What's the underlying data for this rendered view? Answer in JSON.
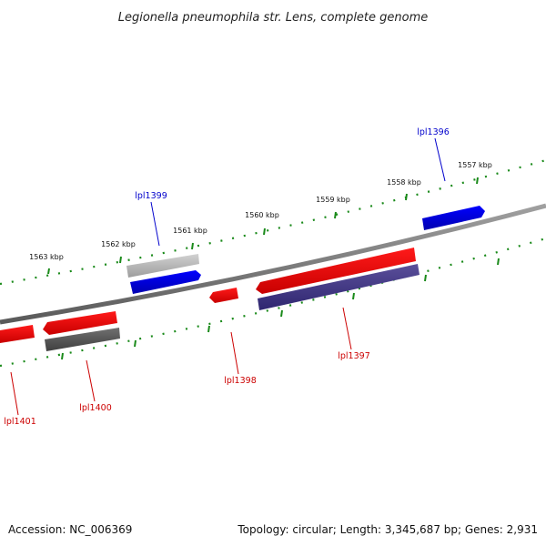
{
  "title": "Legionella pneumophila str. Lens, complete genome",
  "footer": {
    "accession": "Accession: NC_006369",
    "summary": "Topology: circular; Length: 3,345,687 bp; Genes: 2,931"
  },
  "scale": {
    "ticks": [
      {
        "kbp": 1557,
        "label": "1557 kbp"
      },
      {
        "kbp": 1558,
        "label": "1558 kbp"
      },
      {
        "kbp": 1559,
        "label": "1559 kbp"
      },
      {
        "kbp": 1560,
        "label": "1560 kbp"
      },
      {
        "kbp": 1561,
        "label": "1561 kbp"
      },
      {
        "kbp": 1562,
        "label": "1562 kbp"
      },
      {
        "kbp": 1563,
        "label": "1563 kbp"
      }
    ]
  },
  "genes": [
    {
      "label": "lpl1396",
      "strand": "+",
      "color": "#0000cc"
    },
    {
      "label": "lpl1397",
      "strand": "-",
      "color": "#cc0000"
    },
    {
      "label": "lpl1398",
      "strand": "-",
      "color": "#cc0000"
    },
    {
      "label": "lpl1399",
      "strand": "+",
      "color": "#0000cc"
    },
    {
      "label": "lpl1400",
      "strand": "-",
      "color": "#cc0000"
    },
    {
      "label": "lpl1401",
      "strand": "-",
      "color": "#cc0000"
    }
  ],
  "colors": {
    "forward_gene": "#0000ee",
    "reverse_gene": "#ee0000",
    "backbone": "#808080",
    "ticks": "#1a8a1a",
    "feature_gray": "#bbbbbb",
    "feature_dark": "#555555",
    "feature_purple": "#4a3f8a"
  }
}
